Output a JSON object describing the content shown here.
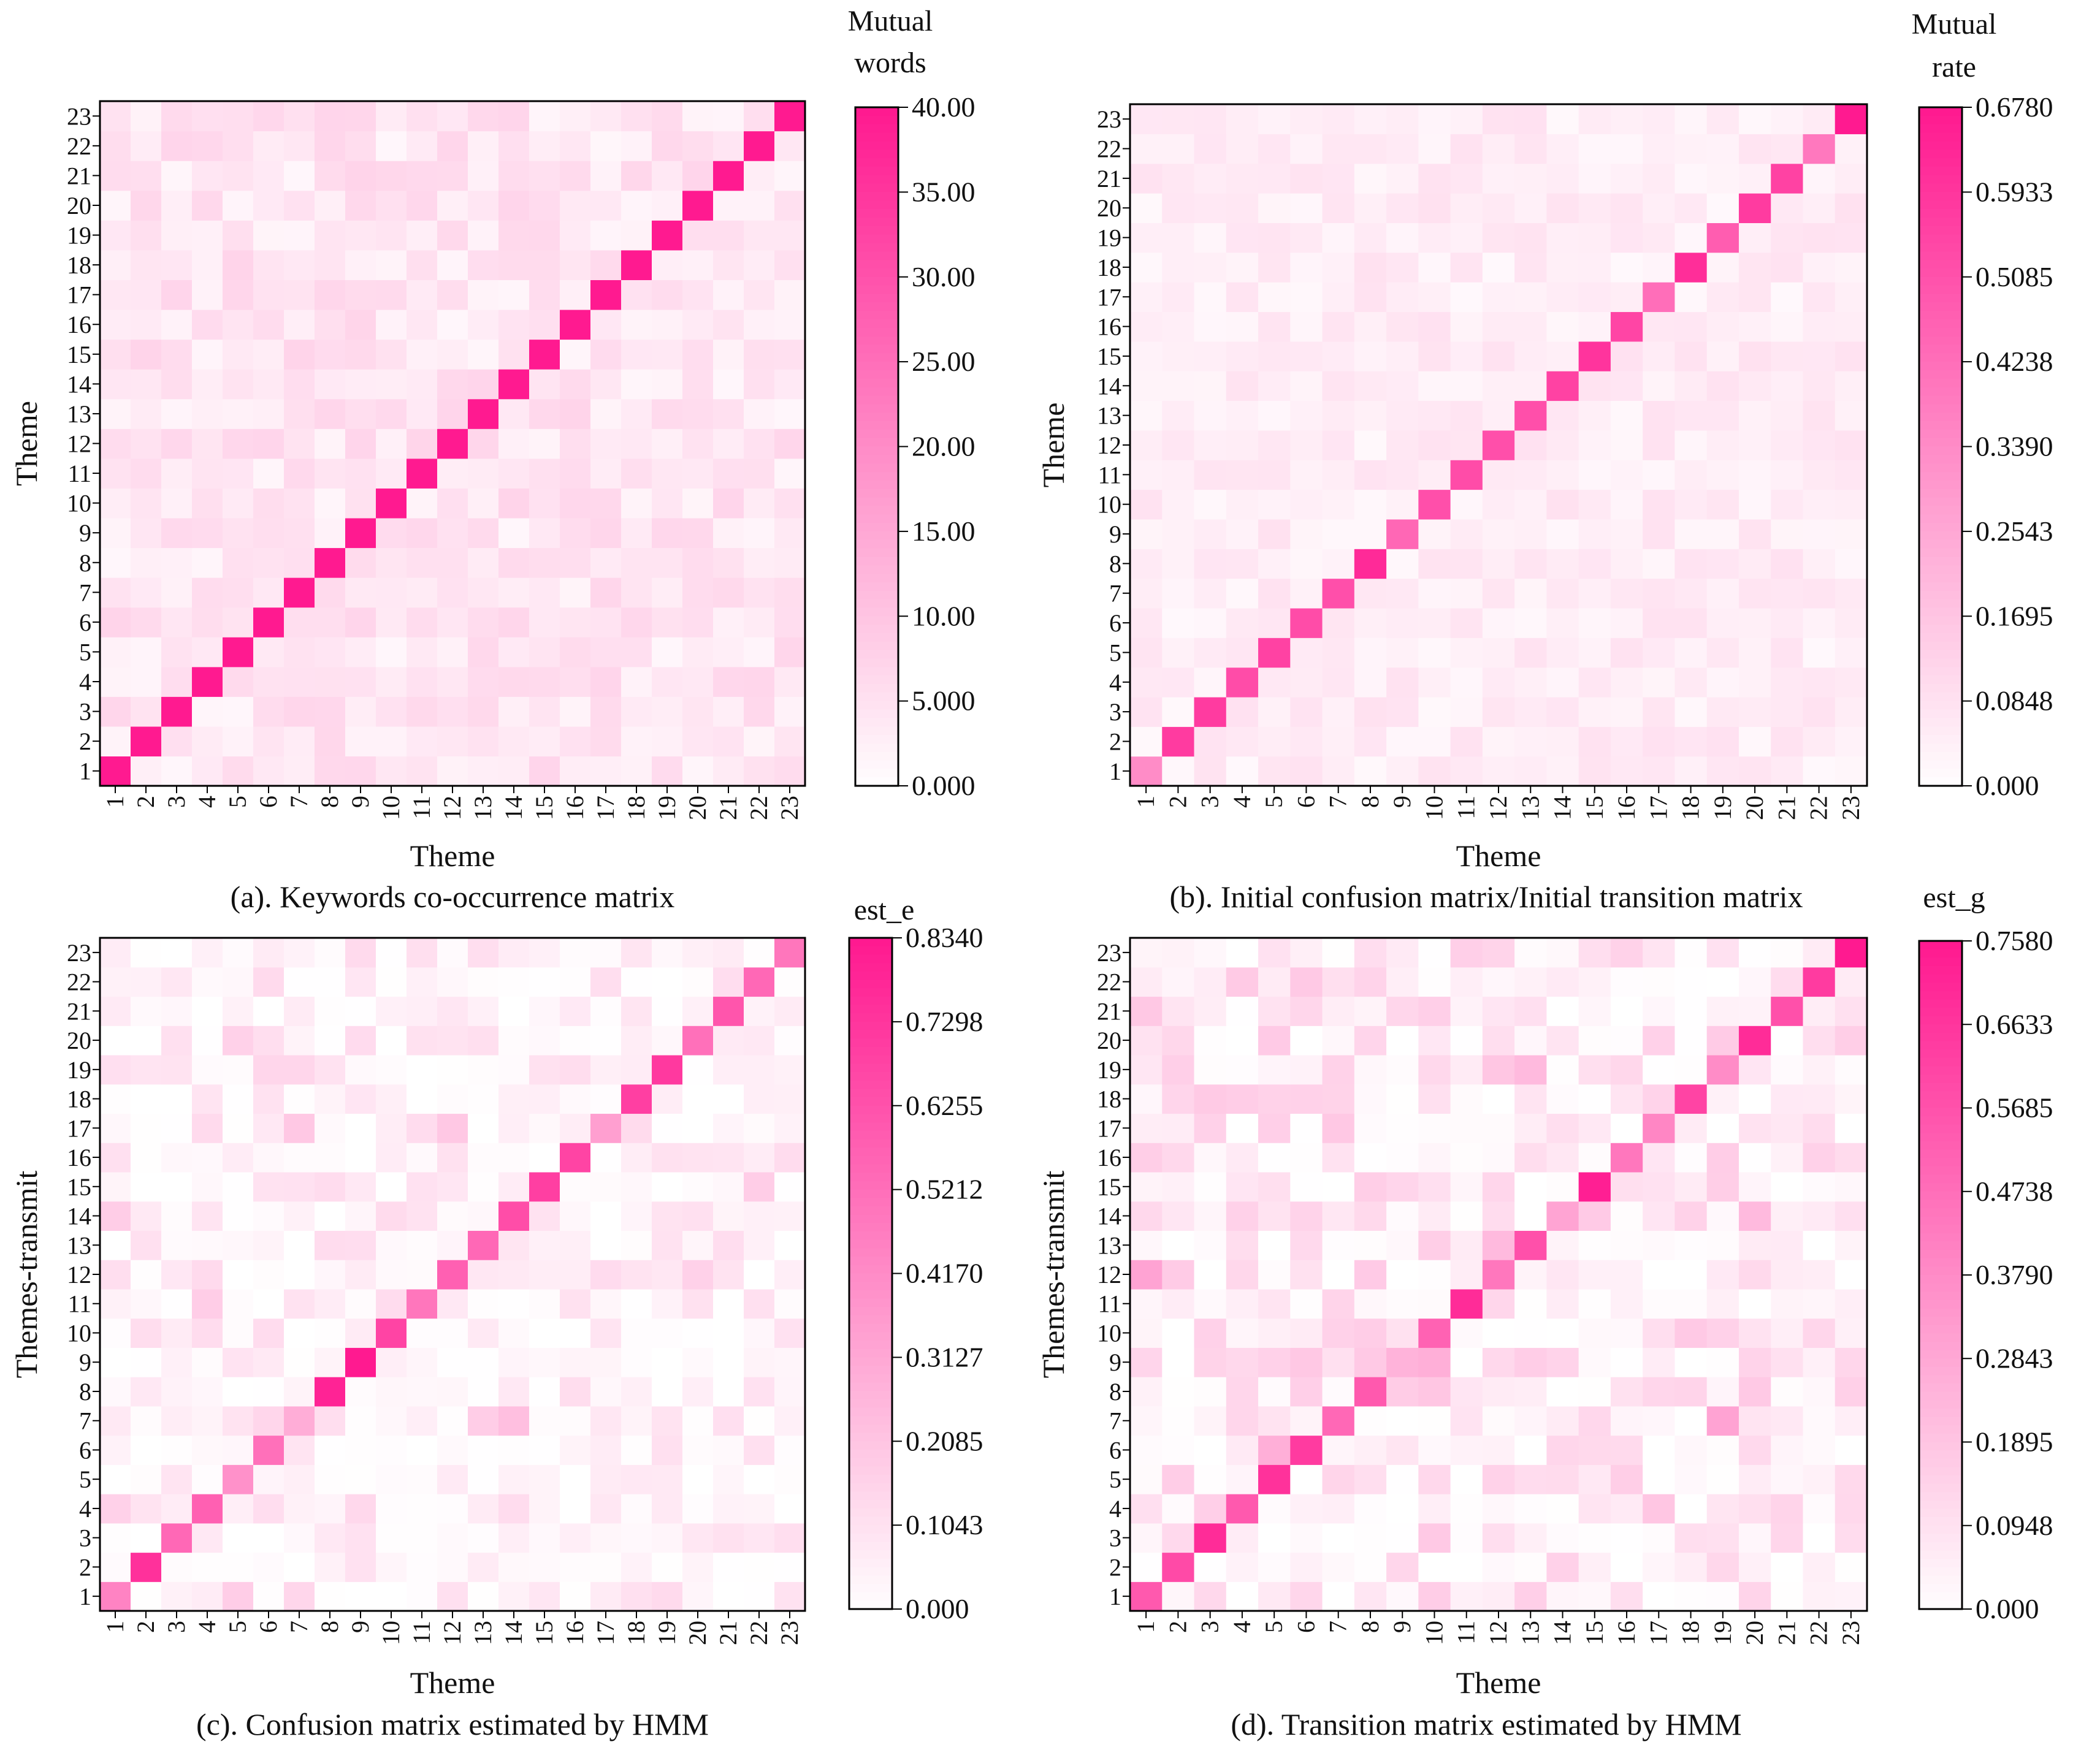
{
  "colors": {
    "high": "#ff1a90",
    "low": "#ffffff",
    "frame": "#000000"
  },
  "chart_data": [
    {
      "type": "heatmap",
      "caption": "(a). Keywords co-occurrence matrix",
      "xlabel": "Theme",
      "ylabel": "Theme",
      "categories": [
        "1",
        "2",
        "3",
        "4",
        "5",
        "6",
        "7",
        "8",
        "9",
        "10",
        "11",
        "12",
        "13",
        "14",
        "15",
        "16",
        "17",
        "18",
        "19",
        "20",
        "21",
        "22",
        "23"
      ],
      "colorbar": {
        "title": [
          "Mutual",
          "words"
        ],
        "ticks": [
          "40.00",
          "35.00",
          "30.00",
          "25.00",
          "20.00",
          "15.00",
          "10.00",
          "5.000",
          "0.000"
        ],
        "range": [
          0,
          40
        ]
      },
      "diagonal_value": 40,
      "off_diagonal_range": [
        1.5,
        7.5
      ]
    },
    {
      "type": "heatmap",
      "caption": "(b). Initial confusion matrix/Initial transition matrix",
      "xlabel": "Theme",
      "ylabel": "Theme",
      "categories": [
        "1",
        "2",
        "3",
        "4",
        "5",
        "6",
        "7",
        "8",
        "9",
        "10",
        "11",
        "12",
        "13",
        "14",
        "15",
        "16",
        "17",
        "18",
        "19",
        "20",
        "21",
        "22",
        "23"
      ],
      "colorbar": {
        "title": [
          "Mutual",
          "rate"
        ],
        "ticks": [
          "0.6780",
          "0.5933",
          "0.5085",
          "0.4238",
          "0.3390",
          "0.2543",
          "0.1695",
          "0.0848",
          "0.000"
        ],
        "range": [
          0,
          0.678
        ]
      },
      "diagonal": [
        0.34,
        0.58,
        0.58,
        0.53,
        0.56,
        0.53,
        0.52,
        0.63,
        0.45,
        0.52,
        0.53,
        0.52,
        0.52,
        0.56,
        0.6,
        0.55,
        0.43,
        0.62,
        0.48,
        0.58,
        0.56,
        0.4,
        0.678
      ],
      "off_diagonal_range": [
        0.02,
        0.09
      ]
    },
    {
      "type": "heatmap",
      "caption": "(c). Confusion matrix estimated by HMM",
      "xlabel": "Theme",
      "ylabel": "Themes-transmit",
      "categories": [
        "1",
        "2",
        "3",
        "4",
        "5",
        "6",
        "7",
        "8",
        "9",
        "10",
        "11",
        "12",
        "13",
        "14",
        "15",
        "16",
        "17",
        "18",
        "19",
        "20",
        "21",
        "22",
        "23"
      ],
      "colorbar": {
        "title": [
          "est_e"
        ],
        "ticks": [
          "0.8340",
          "0.7298",
          "0.6255",
          "0.5212",
          "0.4170",
          "0.3127",
          "0.2085",
          "0.1043",
          "0.000"
        ],
        "range": [
          0,
          0.834
        ]
      },
      "diagonal": [
        0.45,
        0.75,
        0.55,
        0.58,
        0.4,
        0.52,
        0.3,
        0.8,
        0.834,
        0.68,
        0.5,
        0.58,
        0.55,
        0.65,
        0.7,
        0.68,
        0.35,
        0.7,
        0.72,
        0.52,
        0.62,
        0.55,
        0.5
      ],
      "off_diagonal_range": [
        0.0,
        0.22
      ]
    },
    {
      "type": "heatmap",
      "caption": "(d). Transition matrix estimated by HMM",
      "xlabel": "Theme",
      "ylabel": "Themes-transmit",
      "categories": [
        "1",
        "2",
        "3",
        "4",
        "5",
        "6",
        "7",
        "8",
        "9",
        "10",
        "11",
        "12",
        "13",
        "14",
        "15",
        "16",
        "17",
        "18",
        "19",
        "20",
        "21",
        "22",
        "23"
      ],
      "colorbar": {
        "title": [
          "est_g"
        ],
        "ticks": [
          "0.7580",
          "0.6633",
          "0.5685",
          "0.4738",
          "0.3790",
          "0.2843",
          "0.1895",
          "0.0948",
          "0.000"
        ],
        "range": [
          0,
          0.758
        ]
      },
      "diagonal": [
        0.55,
        0.6,
        0.7,
        0.55,
        0.68,
        0.65,
        0.5,
        0.55,
        0.25,
        0.52,
        0.7,
        0.45,
        0.58,
        0.3,
        0.74,
        0.45,
        0.4,
        0.62,
        0.38,
        0.7,
        0.58,
        0.65,
        0.758
      ],
      "off_diagonal_range": [
        0.0,
        0.3
      ]
    }
  ]
}
